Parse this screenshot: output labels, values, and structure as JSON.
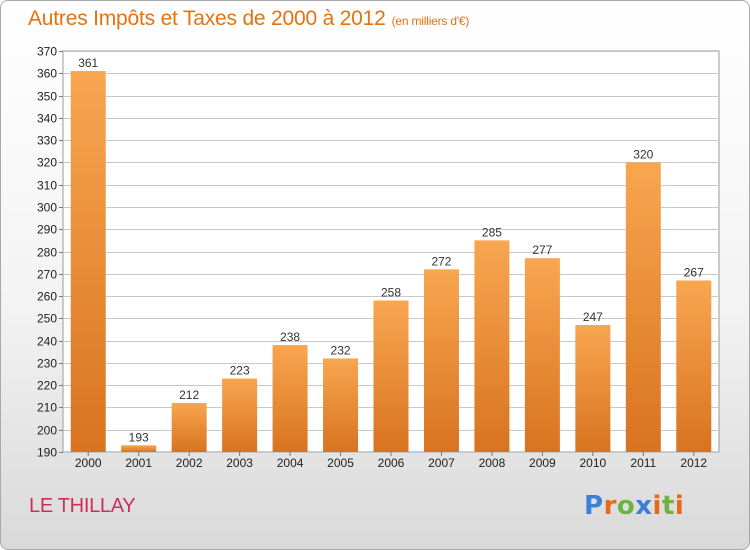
{
  "header": {
    "title": "Autres Impôts et Taxes de 2000 à 2012",
    "unit": "(en milliers d'€)"
  },
  "commune": "LE THILLAY",
  "logo": {
    "letters": [
      {
        "char": "P",
        "color": "#3d7fd6"
      },
      {
        "char": "r",
        "color": "#e8691a"
      },
      {
        "char": "o",
        "color": "#6db33f"
      },
      {
        "char": "x",
        "color": "#3d7fd6"
      },
      {
        "char": "i",
        "color": "#e8691a"
      },
      {
        "char": "t",
        "color": "#6db33f"
      },
      {
        "char": "i",
        "color": "#e8691a"
      }
    ]
  },
  "colors": {
    "bar_light": "#f8a650",
    "bar_dark": "#d87320",
    "title": "#e5720f",
    "commune": "#cc2f5c",
    "grid": "#c8c8c8"
  },
  "chart_data": {
    "type": "bar",
    "categories": [
      "2000",
      "2001",
      "2002",
      "2003",
      "2004",
      "2005",
      "2006",
      "2007",
      "2008",
      "2009",
      "2010",
      "2011",
      "2012"
    ],
    "values": [
      361,
      193,
      212,
      223,
      238,
      232,
      258,
      272,
      285,
      277,
      247,
      320,
      267
    ],
    "ylim": [
      190,
      370
    ],
    "yticks": [
      190,
      200,
      210,
      220,
      230,
      240,
      250,
      260,
      270,
      280,
      290,
      300,
      310,
      320,
      330,
      340,
      350,
      360,
      370
    ],
    "grid": true,
    "data_labels": true
  }
}
